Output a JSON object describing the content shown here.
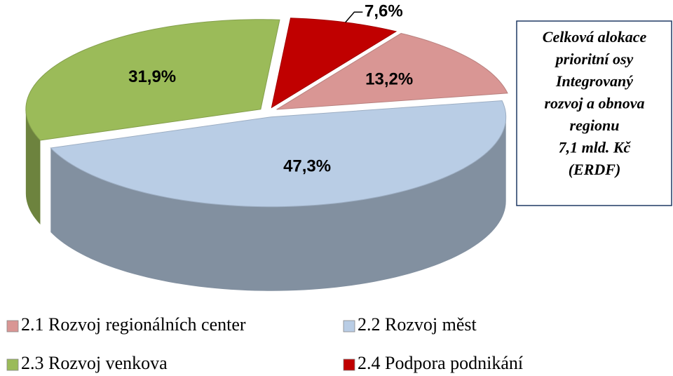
{
  "chart_data": {
    "type": "pie",
    "categories": [
      "2.1 Rozvoj regionálních center",
      "2.2 Rozvoj měst",
      "2.3 Rozvoj venkova",
      "2.4 Podpora podnikání"
    ],
    "values": [
      13.2,
      47.3,
      31.9,
      7.6
    ],
    "value_labels": [
      "13,2%",
      "47,3%",
      "31,9%",
      "7,6%"
    ],
    "colors": [
      "#d99694",
      "#b9cde5",
      "#9bbb59",
      "#c00000"
    ],
    "annotation": [
      "Celková alokace",
      "prioritní osy",
      "Integrovaný",
      "rozvoj a obnova",
      "regionu",
      "7,1 mld. Kč",
      "(ERDF)"
    ]
  }
}
